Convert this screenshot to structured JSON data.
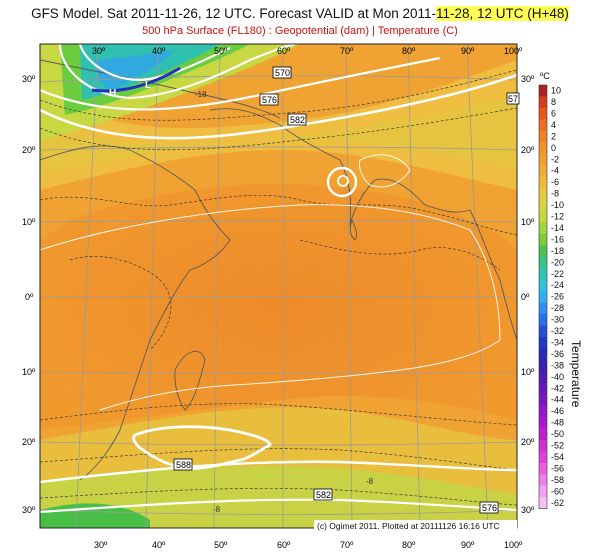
{
  "title": {
    "prefix": "GFS Model. Sat 2011-11-26, 12 UTC. Forecast VALID at Mon 2011-",
    "highlight": "11-28, 12 UTC (H+48)"
  },
  "subtitle": "500 hPa Surface (FL180) : Geopotential (dam) | Temperature (C)",
  "credit": "(c) Ogimet 2011. Plotted at 20111126 16:16 UTC",
  "longitude_labels": [
    "30º",
    "40º",
    "50º",
    "60º",
    "70º",
    "80º",
    "90º",
    "100º"
  ],
  "latitude_labels": [
    "30º",
    "20º",
    "10º",
    "0º",
    "10º",
    "20º",
    "30º"
  ],
  "pressure_labels": [
    "H",
    "L"
  ],
  "contour_labels": [
    "570",
    "576",
    "582",
    "588",
    "582",
    "576",
    "57"
  ],
  "temperature_labels": [
    "-18",
    "-8",
    "-8"
  ],
  "colorbar": {
    "unit": "ºC",
    "title": "Temperature",
    "ticks": [
      "10",
      "8",
      "6",
      "4",
      "2",
      "0",
      "-2",
      "-4",
      "-6",
      "-8",
      "-10",
      "-12",
      "-14",
      "-16",
      "-18",
      "-20",
      "-22",
      "-24",
      "-26",
      "-28",
      "-30",
      "-32",
      "-34",
      "-36",
      "-38",
      "-40",
      "-42",
      "-44",
      "-46",
      "-48",
      "-50",
      "-52",
      "-54",
      "-56",
      "-58",
      "-60",
      "-62"
    ],
    "colors": [
      "#b02020",
      "#d83a1e",
      "#e8561c",
      "#ef6e1f",
      "#f08124",
      "#f0922a",
      "#f09e30",
      "#f0aa36",
      "#eebb3c",
      "#e8c840",
      "#d8d442",
      "#c0d842",
      "#a0d63e",
      "#7ccc3c",
      "#50c050",
      "#38c488",
      "#30c6b6",
      "#30c2dc",
      "#30aef0",
      "#3090f0",
      "#2a70e8",
      "#2450d8",
      "#2038c8",
      "#2a28b8",
      "#3a20b0",
      "#4e1cb0",
      "#6418b8",
      "#7818c0",
      "#9018c8",
      "#a818d0",
      "#c020d0",
      "#d030d0",
      "#e040d8",
      "#ec60e0",
      "#f080e8",
      "#f4a0f0",
      "#f8c0f6"
    ]
  }
}
